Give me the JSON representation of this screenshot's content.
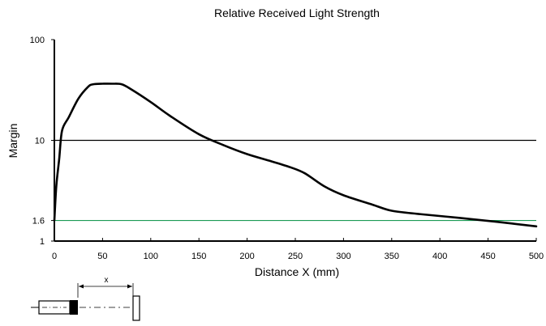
{
  "chart_data": {
    "type": "line",
    "title": "Relative Received Light Strength",
    "xlabel": "Distance X (mm)",
    "ylabel": "Margin",
    "xlim": [
      0,
      500
    ],
    "ylim": [
      1,
      100
    ],
    "y_scale": "log",
    "x_ticks": [
      0,
      50,
      100,
      150,
      200,
      250,
      300,
      350,
      400,
      450,
      500
    ],
    "x_tick_labels": [
      "0",
      "50",
      "100",
      "150",
      "200",
      "250",
      "300",
      "350",
      "400",
      "450",
      "500"
    ],
    "y_ticks": [
      1,
      1.6,
      10,
      100
    ],
    "y_tick_labels": [
      "1",
      "1.6",
      "10",
      "100"
    ],
    "grid": false,
    "reference_lines": [
      {
        "y": 10,
        "color": "#000000"
      },
      {
        "y": 1.6,
        "color": "#1a9a54"
      }
    ],
    "series": [
      {
        "color": "#000000",
        "x": [
          0,
          2,
          5,
          8,
          15,
          25,
          35,
          40,
          50,
          60,
          70,
          80,
          100,
          120,
          150,
          175,
          200,
          225,
          245,
          260,
          280,
          300,
          330,
          350,
          380,
          420,
          460,
          500
        ],
        "y": [
          1.6,
          3.5,
          6.5,
          12.5,
          17,
          26,
          34,
          36,
          36.5,
          36.5,
          36,
          32,
          24,
          17.5,
          11.5,
          9,
          7.3,
          6.2,
          5.4,
          4.7,
          3.5,
          2.85,
          2.3,
          2.0,
          1.85,
          1.7,
          1.55,
          1.4
        ]
      }
    ],
    "diagram": {
      "dimension_label": "x"
    }
  }
}
